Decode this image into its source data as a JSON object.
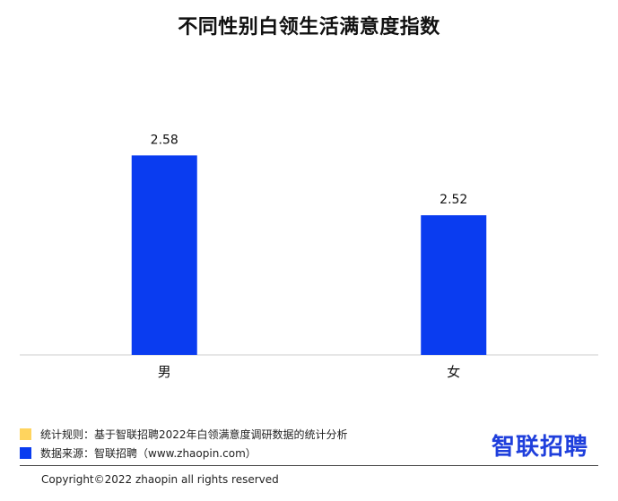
{
  "chart_data": {
    "type": "bar",
    "title": "不同性别白领生活满意度指数",
    "categories": [
      "男",
      "女"
    ],
    "values": [
      2.58,
      2.52
    ],
    "value_labels": [
      "2.58",
      "2.52"
    ],
    "ylim": [
      2.38,
      2.61
    ],
    "bar_color": "#0a3cf0",
    "grid": false,
    "legend": "none"
  },
  "footer": {
    "rule_label": "统计规则：基于智联招聘2022年白领满意度调研数据的统计分析",
    "rule_color": "#ffd45e",
    "source_label": "数据来源：智联招聘（www.zhaopin.com）",
    "source_color": "#0a3cf0",
    "logo": "智联招聘",
    "copyright": "Copyright©2022 zhaopin all rights reserved"
  }
}
